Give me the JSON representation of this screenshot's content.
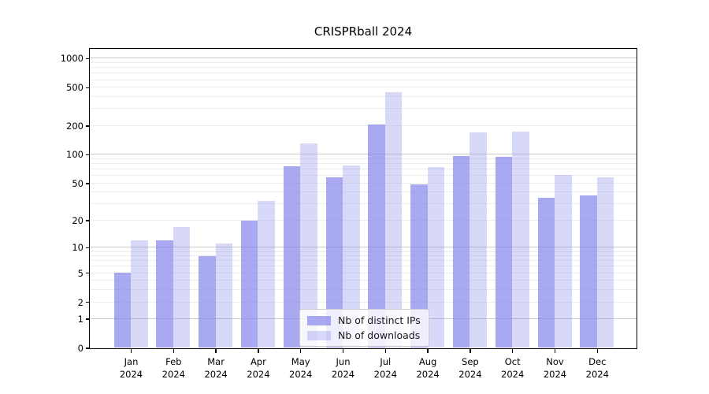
{
  "title": "CRISPRball 2024",
  "chart_data": {
    "type": "bar",
    "title": "CRISPRball 2024",
    "categories": [
      "Jan 2024",
      "Feb 2024",
      "Mar 2024",
      "Apr 2024",
      "May 2024",
      "Jun 2024",
      "Jul 2024",
      "Aug 2024",
      "Sep 2024",
      "Oct 2024",
      "Nov 2024",
      "Dec 2024"
    ],
    "x_tick_months": [
      "Jan",
      "Feb",
      "Mar",
      "Apr",
      "May",
      "Jun",
      "Jul",
      "Aug",
      "Sep",
      "Oct",
      "Nov",
      "Dec"
    ],
    "x_tick_year": "2024",
    "series": [
      {
        "name": "Nb of distinct IPs",
        "values": [
          5,
          12,
          8,
          20,
          75,
          57,
          205,
          48,
          96,
          94,
          35,
          37
        ],
        "base_color": "#8484ec",
        "alpha": 0.7,
        "composited_color": "#a9a9f1"
      },
      {
        "name": "Nb of downloads",
        "values": [
          12,
          17,
          11,
          32,
          130,
          76,
          445,
          74,
          170,
          173,
          61,
          58
        ],
        "base_color": "#8a8aeb",
        "alpha": 0.33,
        "composited_color": "#d9d9f8"
      }
    ],
    "yscale": "log1p",
    "ylabel": "",
    "xlabel": "",
    "ylim": [
      0,
      1275
    ],
    "y_ticks": [
      0,
      1,
      2,
      5,
      10,
      20,
      50,
      100,
      200,
      500,
      1000
    ],
    "y_minor_grid": [
      2,
      3,
      4,
      5,
      6,
      7,
      8,
      9,
      20,
      30,
      40,
      50,
      60,
      70,
      80,
      90,
      200,
      300,
      400,
      500,
      600,
      700,
      800,
      900
    ],
    "y_major_grid": [
      1,
      10,
      100,
      1000
    ],
    "grid": "horizontal",
    "legend": {
      "position": "lower center",
      "items": [
        "Nb of distinct IPs",
        "Nb of downloads"
      ]
    },
    "colors": {
      "spine": "#000000",
      "major_grid": "#c9c9c9",
      "minor_grid": "#ededed",
      "text": "#000000",
      "legend_border": "#cccccc"
    }
  }
}
